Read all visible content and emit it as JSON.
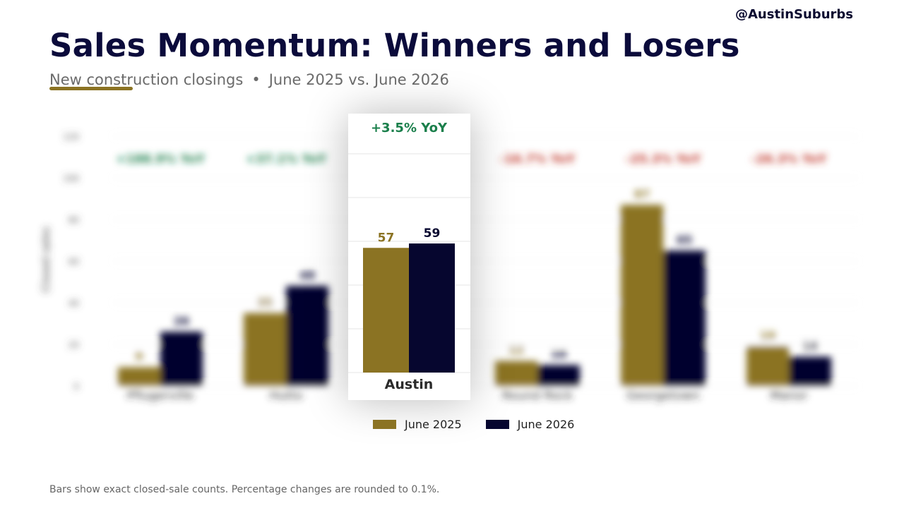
{
  "header": {
    "handle": "@AustinSuburbs",
    "title": "Sales Momentum: Winners and Losers",
    "subtitle_metric": "New construction closings",
    "subtitle_separator": "•",
    "subtitle_period": "June 2025 vs. June 2026"
  },
  "footnote": "Bars show exact closed-sale counts. Percentage changes are rounded to 0.1%.",
  "colors": {
    "june_2025": "#8b7323",
    "june_2026": "#06062f",
    "positive": "#1a7f4b",
    "negative": "#c0392b"
  },
  "chart_data": {
    "type": "bar",
    "ylabel": "Closed sales",
    "ylim": [
      0,
      120
    ],
    "y_ticks": [
      0,
      20,
      40,
      60,
      80,
      100,
      120
    ],
    "grid": true,
    "legend_position": "bottom-center",
    "highlight_category": "Austin",
    "categories": [
      "Pflugerville",
      "Hutto",
      "Austin",
      "Round Rock",
      "Georgetown",
      "Manor"
    ],
    "series": [
      {
        "name": "June 2025",
        "values": [
          9,
          35,
          57,
          12,
          87,
          19
        ]
      },
      {
        "name": "June 2026",
        "values": [
          26,
          48,
          59,
          10,
          65,
          14
        ]
      }
    ],
    "yoy_labels": [
      "+188.9% YoY",
      "+37.1% YoY",
      "+3.5% YoY",
      "-16.7% YoY",
      "-25.3% YoY",
      "-26.3% YoY"
    ]
  }
}
